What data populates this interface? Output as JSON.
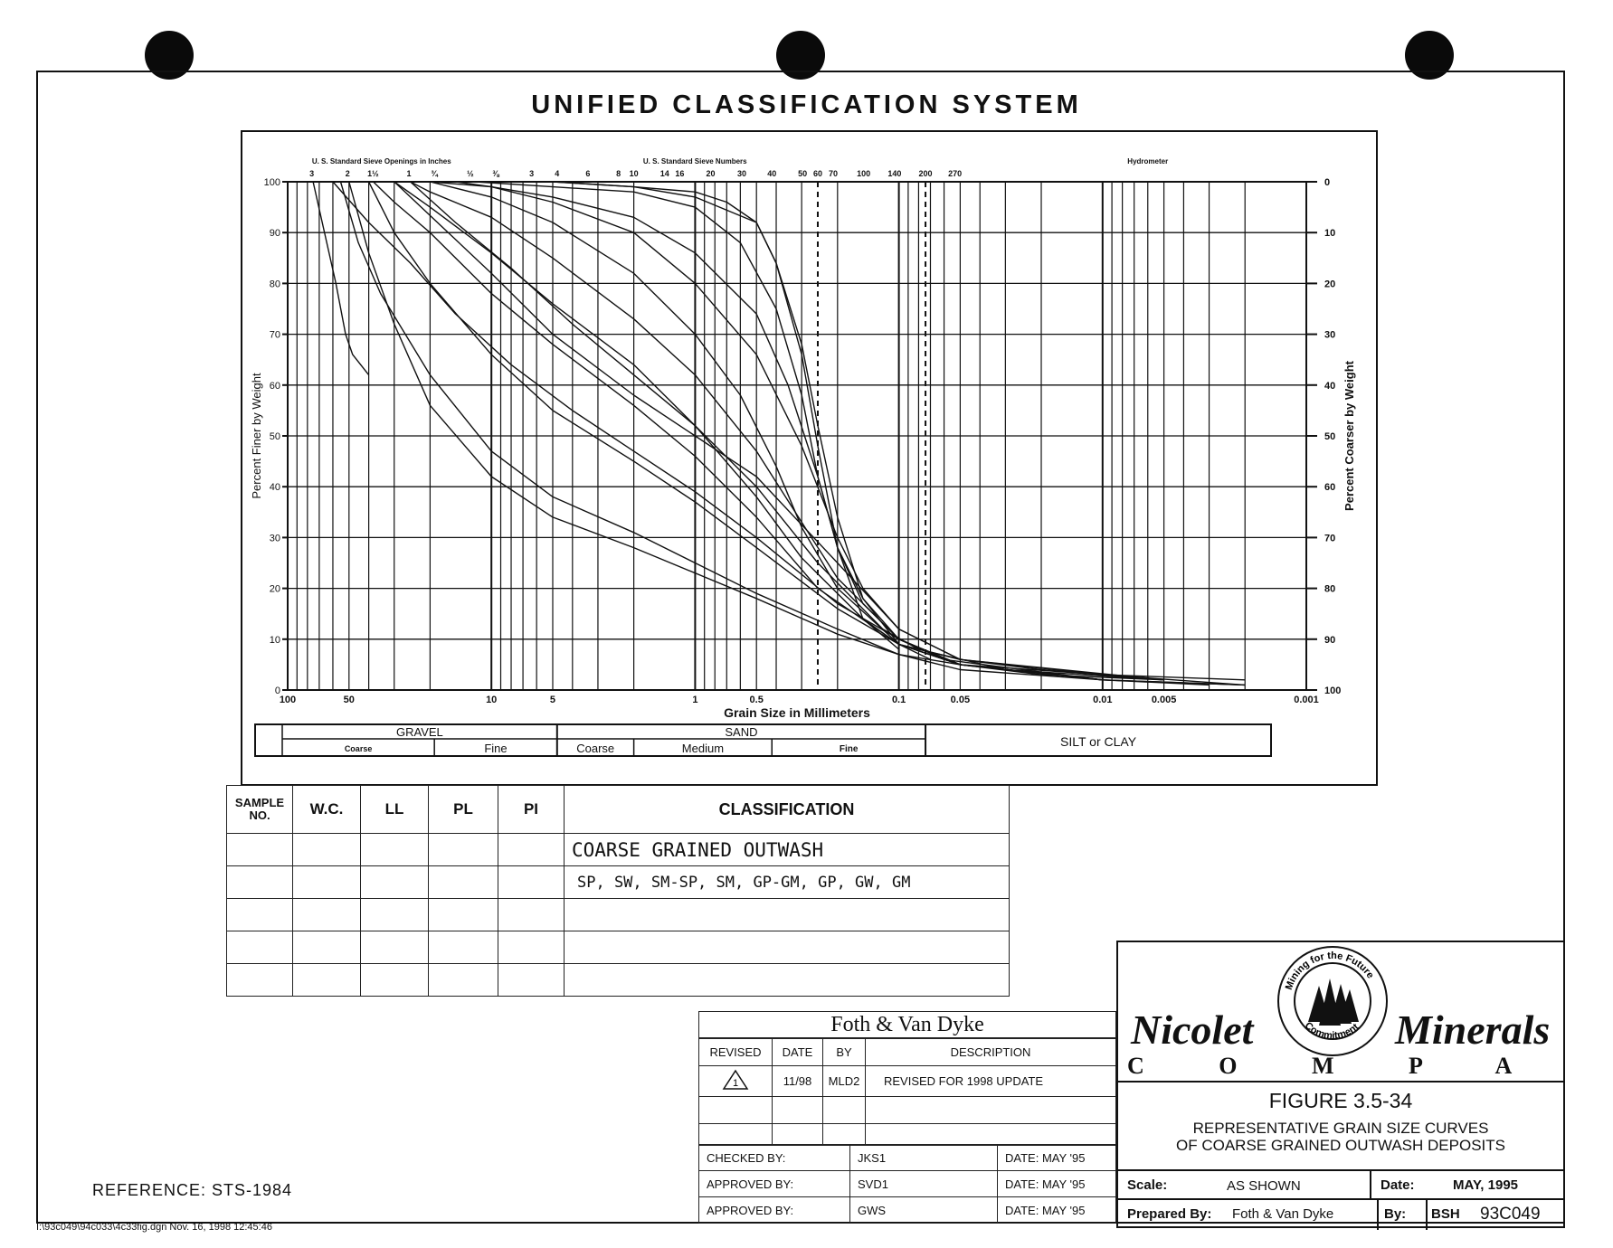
{
  "page": {
    "title": "UNIFIED CLASSIFICATION SYSTEM",
    "reference": "REFERENCE: STS-1984",
    "file_stamp": "I:\\93c049\\94c033\\4c33fig.dgn Nov. 16, 1998 12:45:46"
  },
  "chart_data": {
    "type": "line",
    "title": "",
    "xlabel": "Grain Size in Millimeters",
    "ylabel": "Percent Finer by Weight",
    "y2label": "Percent Coarser by Weight",
    "x_scale": "log",
    "x_reversed": true,
    "xlim": [
      100,
      0.001
    ],
    "ylim": [
      0,
      100
    ],
    "grid": true,
    "top_label_inches": "U. S. Standard Sieve Openings in Inches",
    "top_label_numbers": "U. S. Standard Sieve Numbers",
    "top_label_hydrometer": "Hydrometer",
    "sieve_inch_ticks": [
      {
        "label": "3",
        "x": 76.2
      },
      {
        "label": "2",
        "x": 50.8
      },
      {
        "label": "1½",
        "x": 38.1
      },
      {
        "label": "1",
        "x": 25.4
      },
      {
        "label": "¾",
        "x": 19.05
      },
      {
        "label": "½",
        "x": 12.7
      },
      {
        "label": "⅜",
        "x": 9.525
      }
    ],
    "sieve_number_ticks": [
      {
        "label": "3",
        "x": 6.35
      },
      {
        "label": "4",
        "x": 4.76
      },
      {
        "label": "6",
        "x": 3.36
      },
      {
        "label": "8",
        "x": 2.38
      },
      {
        "label": "10",
        "x": 2.0
      },
      {
        "label": "14",
        "x": 1.41
      },
      {
        "label": "16",
        "x": 1.19
      },
      {
        "label": "20",
        "x": 0.84
      },
      {
        "label": "30",
        "x": 0.59
      },
      {
        "label": "40",
        "x": 0.42
      },
      {
        "label": "50",
        "x": 0.297
      },
      {
        "label": "60",
        "x": 0.25
      },
      {
        "label": "70",
        "x": 0.21
      },
      {
        "label": "100",
        "x": 0.149
      },
      {
        "label": "140",
        "x": 0.105
      },
      {
        "label": "200",
        "x": 0.074
      },
      {
        "label": "270",
        "x": 0.053
      }
    ],
    "x_tick_labels": [
      {
        "label": "100",
        "x": 100
      },
      {
        "label": "50",
        "x": 50
      },
      {
        "label": "10",
        "x": 10
      },
      {
        "label": "5",
        "x": 5
      },
      {
        "label": "1",
        "x": 1
      },
      {
        "label": "0.5",
        "x": 0.5
      },
      {
        "label": "0.1",
        "x": 0.1
      },
      {
        "label": "0.05",
        "x": 0.05
      },
      {
        "label": "0.01",
        "x": 0.01
      },
      {
        "label": "0.005",
        "x": 0.005
      },
      {
        "label": "0.001",
        "x": 0.001
      }
    ],
    "y_tick_labels": [
      "0",
      "10",
      "20",
      "30",
      "40",
      "50",
      "60",
      "70",
      "80",
      "90",
      "100"
    ],
    "y2_tick_labels": [
      "100",
      "90",
      "80",
      "70",
      "60",
      "50",
      "40",
      "30",
      "20",
      "10",
      "0"
    ],
    "dashed_reference_lines_x": [
      0.25,
      0.074
    ],
    "series": [
      {
        "x": [
          75,
          58,
          52,
          48,
          40
        ],
        "y": [
          100,
          80,
          70,
          66,
          62
        ]
      },
      {
        "x": [
          55,
          45,
          35,
          20,
          10,
          5,
          2,
          1,
          0.5,
          0.2,
          0.1,
          0.05,
          0.01,
          0.002
        ],
        "y": [
          100,
          88,
          78,
          62,
          47,
          38,
          31,
          25,
          19,
          12,
          7,
          4,
          2,
          1
        ]
      },
      {
        "x": [
          50,
          40,
          30,
          20,
          10,
          5,
          2,
          1,
          0.5,
          0.2,
          0.1,
          0.05,
          0.02,
          0.005
        ],
        "y": [
          100,
          86,
          72,
          56,
          42,
          34,
          28,
          23,
          18,
          11,
          7,
          5,
          3,
          2
        ]
      },
      {
        "x": [
          40,
          30,
          20,
          10,
          5,
          2,
          1,
          0.5,
          0.2,
          0.1,
          0.05,
          0.01,
          0.002
        ],
        "y": [
          100,
          90,
          80,
          66,
          55,
          45,
          37,
          28,
          16,
          9,
          5,
          3,
          2
        ]
      },
      {
        "x": [
          38,
          30,
          20,
          10,
          5,
          2,
          1,
          0.5,
          0.25,
          0.1,
          0.05,
          0.01,
          0.003
        ],
        "y": [
          100,
          96,
          90,
          78,
          68,
          56,
          46,
          34,
          20,
          9,
          5,
          2,
          1
        ]
      },
      {
        "x": [
          30,
          20,
          10,
          5,
          2,
          1,
          0.5,
          0.3,
          0.15,
          0.1,
          0.05,
          0.02,
          0.005
        ],
        "y": [
          100,
          95,
          86,
          76,
          64,
          52,
          38,
          26,
          14,
          9,
          6,
          4,
          2
        ]
      },
      {
        "x": [
          25,
          20,
          10,
          5,
          2,
          1,
          0.5,
          0.3,
          0.2,
          0.1,
          0.06,
          0.01
        ],
        "y": [
          100,
          98,
          93,
          85,
          73,
          62,
          47,
          33,
          22,
          10,
          6,
          2
        ]
      },
      {
        "x": [
          20,
          10,
          5,
          2,
          1,
          0.6,
          0.4,
          0.3,
          0.2,
          0.1,
          0.05,
          0.01,
          0.002
        ],
        "y": [
          100,
          97,
          92,
          82,
          70,
          58,
          44,
          32,
          20,
          9,
          5,
          2,
          1
        ]
      },
      {
        "x": [
          20,
          10,
          5,
          2,
          1,
          0.5,
          0.3,
          0.2,
          0.15,
          0.1,
          0.05,
          0.005
        ],
        "y": [
          100,
          99,
          96,
          90,
          80,
          66,
          48,
          30,
          20,
          12,
          6,
          2
        ]
      },
      {
        "x": [
          15,
          10,
          5,
          2,
          1,
          0.5,
          0.35,
          0.25,
          0.2,
          0.15,
          0.1,
          0.05,
          0.01
        ],
        "y": [
          100,
          99,
          97,
          93,
          86,
          74,
          60,
          42,
          28,
          18,
          10,
          5,
          2
        ]
      },
      {
        "x": [
          12,
          5,
          2,
          1,
          0.6,
          0.4,
          0.3,
          0.25,
          0.2,
          0.15,
          0.1,
          0.05,
          0.01
        ],
        "y": [
          100,
          99,
          98,
          95,
          88,
          75,
          58,
          42,
          28,
          17,
          10,
          5,
          2
        ]
      },
      {
        "x": [
          10,
          5,
          2,
          1,
          0.5,
          0.4,
          0.3,
          0.25,
          0.2,
          0.15,
          0.1,
          0.07
        ],
        "y": [
          100,
          100,
          99,
          97,
          92,
          84,
          68,
          52,
          34,
          18,
          9,
          6
        ]
      },
      {
        "x": [
          8,
          5,
          2,
          1,
          0.7,
          0.5,
          0.4,
          0.3,
          0.25,
          0.2,
          0.15,
          0.1
        ],
        "y": [
          100,
          100,
          99,
          98,
          96,
          92,
          84,
          66,
          48,
          28,
          14,
          8
        ]
      },
      {
        "x": [
          30,
          10,
          5,
          2,
          1,
          0.5,
          0.2,
          0.1,
          0.05,
          0.01,
          0.002
        ],
        "y": [
          100,
          82,
          70,
          58,
          50,
          42,
          25,
          12,
          6,
          3,
          1
        ]
      },
      {
        "x": [
          60,
          40,
          25,
          15,
          8,
          4,
          2,
          1,
          0.5,
          0.2,
          0.1,
          0.05,
          0.01
        ],
        "y": [
          100,
          92,
          84,
          74,
          64,
          55,
          47,
          39,
          30,
          17,
          10,
          5,
          2
        ]
      },
      {
        "x": [
          25,
          15,
          8,
          4,
          2,
          1,
          0.5,
          0.25,
          0.12,
          0.08,
          0.03,
          0.005
        ],
        "y": [
          100,
          92,
          83,
          72,
          62,
          52,
          40,
          25,
          12,
          8,
          4,
          2
        ]
      }
    ]
  },
  "size_scale": {
    "gravel": "GRAVEL",
    "gravel_coarse": "Coarse",
    "gravel_fine": "Fine",
    "sand": "SAND",
    "sand_coarse": "Coarse",
    "sand_medium": "Medium",
    "sand_fine": "Fine",
    "silt_clay": "SILT or CLAY"
  },
  "sample_table": {
    "headers": [
      "SAMPLE NO.",
      "W.C.",
      "LL",
      "PL",
      "PI",
      "CLASSIFICATION"
    ],
    "classification_1": "COARSE GRAINED OUTWASH",
    "classification_2": "SP, SW, SM-SP, SM, GP-GM, GP, GW, GM"
  },
  "revision_block": {
    "firm": "Foth & Van Dyke",
    "headers": [
      "REVISED",
      "DATE",
      "BY",
      "DESCRIPTION"
    ],
    "rows": [
      {
        "revised_symbol": "1",
        "date": "11/98",
        "by": "MLD2",
        "description": "REVISED FOR 1998 UPDATE"
      }
    ],
    "checked_label": "CHECKED BY:",
    "checked_by": "JKS1",
    "approved1_label": "APPROVED BY:",
    "approved1_by": "SVD1",
    "approved2_label": "APPROVED BY:",
    "approved2_by": "GWS",
    "date_label": "DATE:",
    "date_value": "MAY '95"
  },
  "title_block": {
    "company_left": "Nicolet",
    "company_right": "Minerals",
    "company_sub": "C O M P A N Y",
    "logo_top_text": "Mining for the Future",
    "logo_bottom_text": "Commitment",
    "figure": "FIGURE 3.5-34",
    "description_1": "REPRESENTATIVE GRAIN SIZE CURVES",
    "description_2": "OF COARSE GRAINED OUTWASH DEPOSITS",
    "scale_label": "Scale:",
    "scale_value": "AS SHOWN",
    "date_label": "Date:",
    "date_value": "MAY, 1995",
    "prepared_label": "Prepared By:",
    "prepared_value": "Foth & Van Dyke",
    "by_label": "By:",
    "by_value": "BSH",
    "drawing_no": "93C049"
  }
}
